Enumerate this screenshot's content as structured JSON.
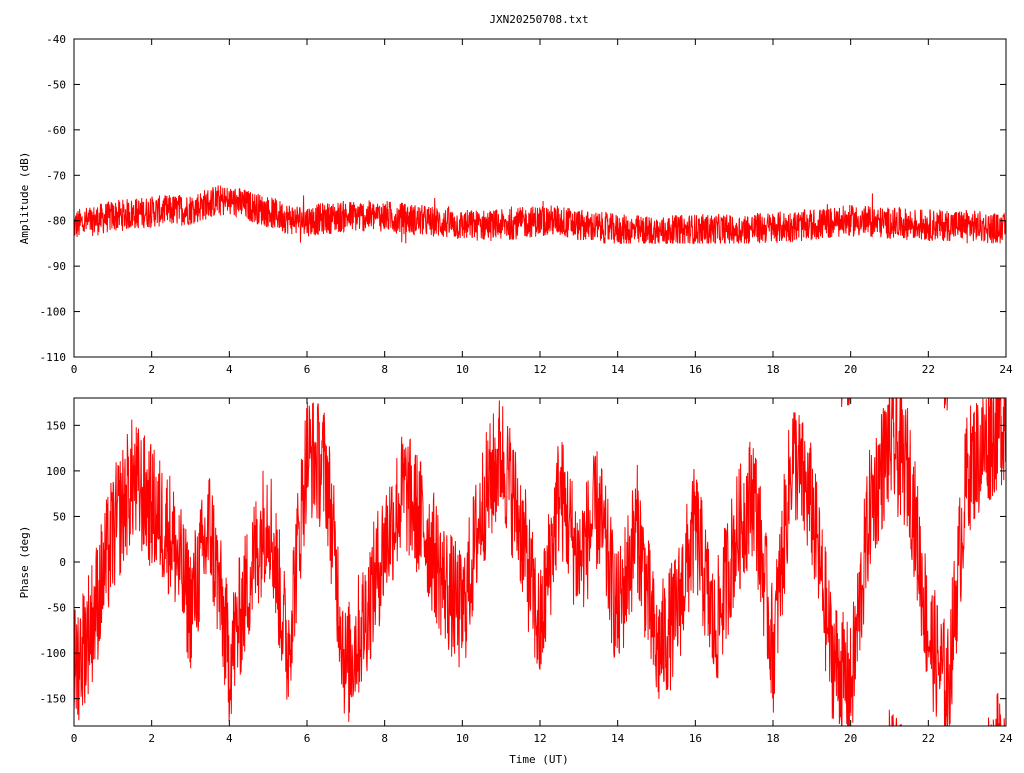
{
  "title": "JXN20250708.txt",
  "colors": {
    "series": "#ff0000",
    "axis": "#000000",
    "grid": "#a0a0a0",
    "background": "#ffffff"
  },
  "chart_data": [
    {
      "type": "line",
      "title": "JXN20250708.txt",
      "xlabel": "",
      "ylabel": "Amplitude (dB)",
      "xlim": [
        0,
        24
      ],
      "ylim": [
        -110,
        -40
      ],
      "xticks": [
        0,
        2,
        4,
        6,
        8,
        10,
        12,
        14,
        16,
        18,
        20,
        22,
        24
      ],
      "yticks": [
        -40,
        -50,
        -60,
        -70,
        -80,
        -90,
        -100,
        -110
      ],
      "xtick_labels": [
        "0",
        "2",
        "4",
        "6",
        "8",
        "10",
        "12",
        "14",
        "16",
        "18",
        "20",
        "22",
        "24"
      ],
      "ytick_labels": [
        "-40",
        "-50",
        "-60",
        "-70",
        "-80",
        "-90",
        "-100",
        "-110"
      ],
      "grid": false,
      "series": [
        {
          "x": [
            0,
            1,
            2,
            3,
            3.7,
            4.2,
            5,
            5.5,
            6,
            7,
            8,
            9,
            10,
            11,
            12,
            12.5,
            13,
            14,
            15,
            16,
            17,
            18,
            19,
            20,
            21,
            22,
            23,
            24
          ],
          "y_mean": [
            -81,
            -79,
            -78,
            -77.5,
            -75.5,
            -76,
            -78,
            -79.5,
            -80,
            -79,
            -79,
            -80,
            -81,
            -81,
            -80,
            -80,
            -81,
            -82,
            -82.5,
            -82,
            -82,
            -81.5,
            -81,
            -80,
            -80.5,
            -81,
            -81,
            -82
          ],
          "y_spread": 3.5,
          "y_max": -71,
          "y_min": -85
        }
      ]
    },
    {
      "type": "line",
      "title": "",
      "xlabel": "Time (UT)",
      "ylabel": "Phase (deg)",
      "xlim": [
        0,
        24
      ],
      "ylim": [
        -180,
        180
      ],
      "xticks": [
        0,
        2,
        4,
        6,
        8,
        10,
        12,
        14,
        16,
        18,
        20,
        22,
        24
      ],
      "yticks": [
        150,
        100,
        50,
        0,
        -50,
        -100,
        -150
      ],
      "xtick_labels": [
        "0",
        "2",
        "4",
        "6",
        "8",
        "10",
        "12",
        "14",
        "16",
        "18",
        "20",
        "22",
        "24"
      ],
      "ytick_labels": [
        "150",
        "100",
        "50",
        "0",
        "-50",
        "-100",
        "-150"
      ],
      "grid": false,
      "series": [
        {
          "x": [
            0,
            0.5,
            1,
            1.5,
            2,
            2.5,
            3,
            3.5,
            4,
            4.5,
            5,
            5.5,
            6,
            6.5,
            7,
            7.5,
            8,
            8.5,
            9,
            9.5,
            10,
            10.5,
            11,
            11.5,
            12,
            12.5,
            13,
            13.5,
            14,
            14.5,
            15,
            15.5,
            16,
            16.5,
            17,
            17.5,
            18,
            18.5,
            19,
            19.5,
            20,
            20.5,
            21,
            21.5,
            22,
            22.5,
            23,
            23.5,
            24
          ],
          "y": [
            -120,
            -60,
            30,
            90,
            60,
            30,
            -50,
            40,
            -110,
            -20,
            60,
            -100,
            120,
            100,
            -120,
            -60,
            20,
            80,
            40,
            -20,
            -60,
            60,
            120,
            40,
            -80,
            80,
            0,
            60,
            -60,
            40,
            -100,
            -60,
            40,
            -80,
            20,
            80,
            -100,
            120,
            60,
            -100,
            -140,
            60,
            130,
            100,
            -80,
            -140,
            100,
            130,
            160
          ],
          "wraps": true,
          "wrap_range": [
            -180,
            180
          ]
        }
      ]
    }
  ]
}
